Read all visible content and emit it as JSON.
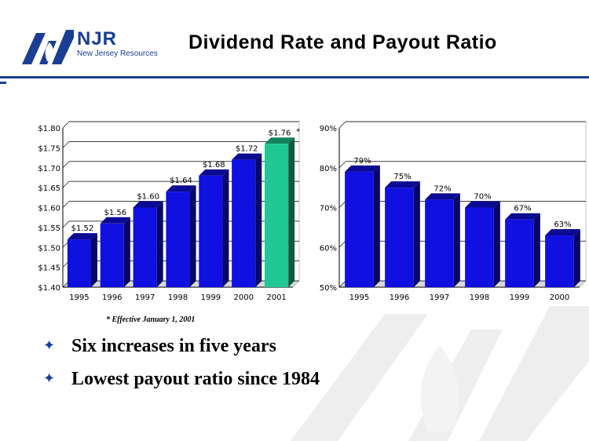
{
  "header": {
    "logo_name": "NJR",
    "logo_subtitle": "New Jersey Resources",
    "title": "Dividend Rate and Payout Ratio"
  },
  "colors": {
    "brand": "#1a3e93",
    "bar": "#1010e0",
    "bar_highlight": "#1ec890"
  },
  "chart_data": [
    {
      "type": "bar",
      "categories": [
        "1995",
        "1996",
        "1997",
        "1998",
        "1999",
        "2000",
        "2001"
      ],
      "values": [
        1.52,
        1.56,
        1.6,
        1.64,
        1.68,
        1.72,
        1.76
      ],
      "data_labels": [
        "$1.52",
        "$1.56",
        "$1.60",
        "$1.64",
        "$1.68",
        "$1.72",
        "$1.76"
      ],
      "highlight_index": 6,
      "highlight_marker": "*",
      "y_tick_labels": [
        "$1.40",
        "$1.45",
        "$1.50",
        "$1.55",
        "$1.60",
        "$1.65",
        "$1.70",
        "$1.75",
        "$1.80"
      ],
      "ylim": [
        1.4,
        1.8
      ],
      "grid": "horizontal",
      "footnote": "* Effective January 1, 2001"
    },
    {
      "type": "bar",
      "categories": [
        "1995",
        "1996",
        "1997",
        "1998",
        "1999",
        "2000"
      ],
      "values": [
        79,
        75,
        72,
        70,
        67,
        63
      ],
      "data_labels": [
        "79%",
        "75%",
        "72%",
        "70%",
        "67%",
        "63%"
      ],
      "y_tick_labels": [
        "50%",
        "60%",
        "70%",
        "80%",
        "90%"
      ],
      "ylim": [
        50,
        90
      ],
      "grid": "horizontal"
    }
  ],
  "bullets": [
    "Six increases in five years",
    "Lowest payout ratio since 1984"
  ]
}
